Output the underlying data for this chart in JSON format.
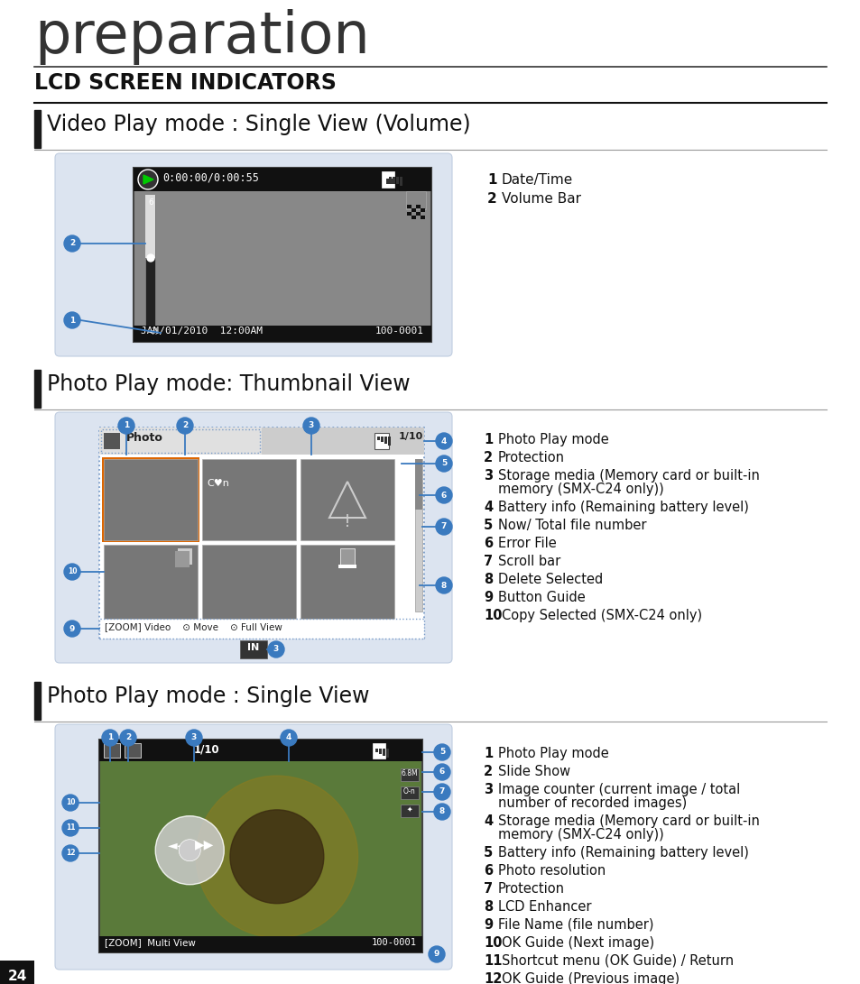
{
  "bg_color": "#ffffff",
  "page_number": "24",
  "title_text": "preparation",
  "section_title": "LCD SCREEN INDICATORS",
  "section1_title": "Video Play mode : Single View (Volume)",
  "section2_title": "Photo Play mode: Thumbnail View",
  "section3_title": "Photo Play mode : Single View",
  "video_items": [
    {
      "num": "1",
      "text": "Date/Time"
    },
    {
      "num": "2",
      "text": "Volume Bar"
    }
  ],
  "thumbnail_items": [
    {
      "num": "1",
      "text": "Photo Play mode"
    },
    {
      "num": "2",
      "text": "Protection"
    },
    {
      "num": "3",
      "text": "Storage media (Memory card or built-in\nmemory (SMX-C24 only))"
    },
    {
      "num": "4",
      "text": "Battery info (Remaining battery level)"
    },
    {
      "num": "5",
      "text": "Now/ Total file number"
    },
    {
      "num": "6",
      "text": "Error File"
    },
    {
      "num": "7",
      "text": "Scroll bar"
    },
    {
      "num": "8",
      "text": "Delete Selected"
    },
    {
      "num": "9",
      "text": "Button Guide"
    },
    {
      "num": "10",
      "text": "Copy Selected (SMX-C24 only)"
    }
  ],
  "single_items": [
    {
      "num": "1",
      "text": "Photo Play mode"
    },
    {
      "num": "2",
      "text": "Slide Show"
    },
    {
      "num": "3",
      "text": "Image counter (current image / total\nnumber of recorded images)"
    },
    {
      "num": "4",
      "text": "Storage media (Memory card or built-in\nmemory (SMX-C24 only))"
    },
    {
      "num": "5",
      "text": "Battery info (Remaining battery level)"
    },
    {
      "num": "6",
      "text": "Photo resolution"
    },
    {
      "num": "7",
      "text": "Protection"
    },
    {
      "num": "8",
      "text": "LCD Enhancer"
    },
    {
      "num": "9",
      "text": "File Name (file number)"
    },
    {
      "num": "10",
      "text": "OK Guide (Next image)"
    },
    {
      "num": "11",
      "text": "Shortcut menu (OK Guide) / Return"
    },
    {
      "num": "12",
      "text": "OK Guide (Previous image)"
    }
  ],
  "img_bg": "#dce4f0",
  "callout_color": "#3a7abf",
  "line_color": "#3a7abf",
  "dot_border_color": "#7a9cc9",
  "section_bar_color": "#1a1a1a",
  "hr_color": "#888888"
}
